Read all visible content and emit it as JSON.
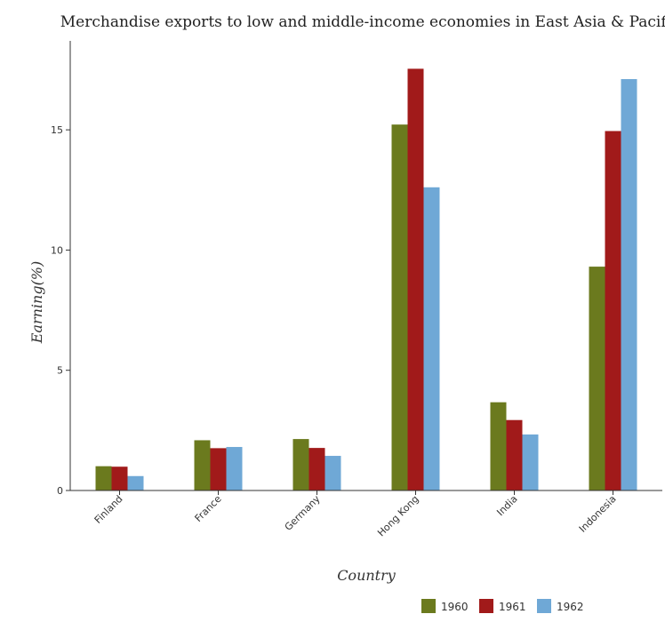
{
  "chart_data": {
    "type": "bar",
    "title": "Merchandise exports to low and middle-income economies in East Asia & Pacific",
    "xlabel": "Country",
    "ylabel": "Earning(%)",
    "categories": [
      "Finland",
      "France",
      "Germany",
      "Hong Kong",
      "India",
      "Indonesia"
    ],
    "series": [
      {
        "name": "1960",
        "color": "#6b7a1e",
        "values": [
          1.01,
          2.09,
          2.14,
          15.22,
          3.67,
          9.31
        ]
      },
      {
        "name": "1961",
        "color": "#a11a1a",
        "values": [
          0.99,
          1.76,
          1.77,
          17.54,
          2.93,
          14.95
        ]
      },
      {
        "name": "1962",
        "color": "#6fa8d6",
        "values": [
          0.6,
          1.81,
          1.44,
          12.61,
          2.33,
          17.11
        ]
      }
    ],
    "ylim": [
      0,
      18.7
    ],
    "yticks": [
      0,
      5,
      10,
      15
    ],
    "grid": false,
    "legend_position": "bottom-right"
  }
}
